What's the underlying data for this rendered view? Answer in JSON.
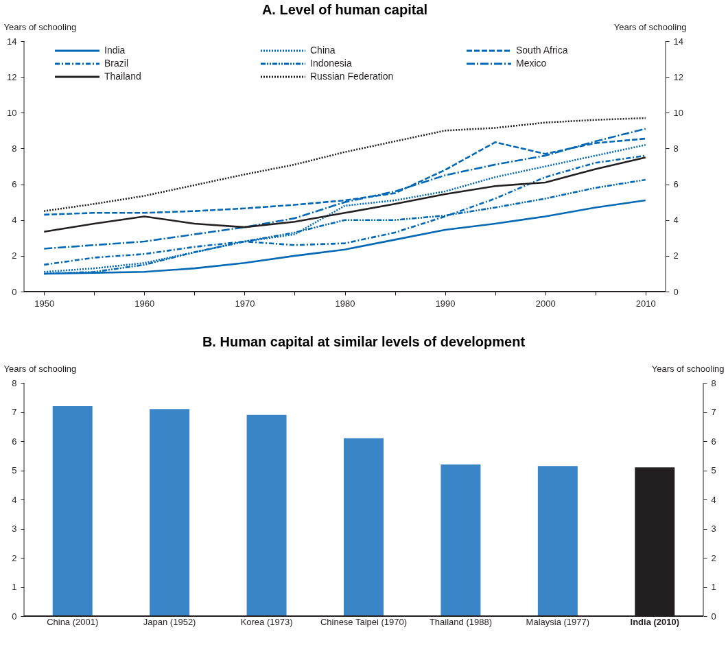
{
  "chart_data": [
    {
      "type": "line",
      "title": "A. Level of human capital",
      "ylabel": "Years of schooling",
      "y2label": "Years of schooling",
      "x": [
        1950,
        1955,
        1960,
        1965,
        1970,
        1975,
        1980,
        1985,
        1990,
        1995,
        2000,
        2005,
        2010
      ],
      "xlim": [
        1948,
        2012
      ],
      "xticks": [
        1950,
        {
          "value": 1955,
          "label": null
        },
        1960,
        {
          "value": 1965,
          "label": null
        },
        1970,
        {
          "value": 1975,
          "label": null
        },
        1980,
        {
          "value": 1985,
          "label": null
        },
        1990,
        {
          "value": 1995,
          "label": null
        },
        2000,
        {
          "value": 2005,
          "label": null
        },
        2010
      ],
      "ylim": [
        0,
        14
      ],
      "yticks": [
        0,
        2,
        4,
        6,
        8,
        10,
        12,
        14
      ],
      "y2lim": [
        0,
        14
      ],
      "y2ticks": [
        0,
        2,
        4,
        6,
        8,
        10,
        12,
        14
      ],
      "grid": false,
      "legend": "top",
      "marker": "none",
      "series": [
        {
          "name": "India",
          "color": "#0068b5",
          "line_style": "solid",
          "values": [
            1.0,
            1.05,
            1.1,
            1.3,
            1.6,
            2.0,
            2.35,
            2.9,
            3.45,
            3.8,
            4.2,
            4.7,
            5.1
          ]
        },
        {
          "name": "China",
          "color": "#0068b5",
          "line_style": "dotted",
          "values": [
            1.1,
            1.3,
            1.6,
            2.2,
            2.8,
            3.2,
            4.8,
            5.1,
            5.6,
            6.4,
            7.0,
            7.6,
            8.2
          ]
        },
        {
          "name": "South Africa",
          "color": "#0068b5",
          "line_style": "dashed",
          "values": [
            4.3,
            4.4,
            4.4,
            4.5,
            4.65,
            4.85,
            5.1,
            5.5,
            6.8,
            8.35,
            7.7,
            8.3,
            8.55
          ]
        },
        {
          "name": "Brazil",
          "color": "#0068b5",
          "line_style": "dashdot",
          "values": [
            1.5,
            1.9,
            2.1,
            2.5,
            2.8,
            2.6,
            2.7,
            3.3,
            4.2,
            5.2,
            6.4,
            7.2,
            7.6
          ]
        },
        {
          "name": "Indonesia",
          "color": "#0068b5",
          "line_style": "dashdotdot",
          "values": [
            1.0,
            1.1,
            1.5,
            2.2,
            2.8,
            3.3,
            4.0,
            4.0,
            4.25,
            4.7,
            5.2,
            5.8,
            6.25
          ]
        },
        {
          "name": "Mexico",
          "color": "#0068b5",
          "line_style": "longdashdot",
          "values": [
            2.4,
            2.6,
            2.8,
            3.2,
            3.6,
            4.1,
            5.0,
            5.6,
            6.5,
            7.1,
            7.6,
            8.4,
            9.1
          ]
        },
        {
          "name": "Thailand",
          "color": "#231f20",
          "line_style": "solid",
          "values": [
            3.35,
            3.8,
            4.2,
            3.8,
            3.6,
            3.9,
            4.4,
            4.9,
            5.45,
            5.9,
            6.1,
            6.85,
            7.5
          ]
        },
        {
          "name": "Russian Federation",
          "color": "#231f20",
          "line_style": "dotted",
          "values": [
            4.5,
            4.9,
            5.35,
            5.95,
            6.55,
            7.1,
            7.8,
            8.4,
            9.0,
            9.15,
            9.45,
            9.6,
            9.7
          ]
        }
      ]
    },
    {
      "type": "bar",
      "title": "B. Human capital at similar levels of development",
      "ylabel": "Years of schooling",
      "y2label": "Years of schooling",
      "categories": [
        "China (2001)",
        "Japan (1952)",
        "Korea (1973)",
        "Chinese Taipei (1970)",
        "Thailand (1988)",
        "Malaysia (1977)",
        "India (2010)"
      ],
      "values": [
        7.2,
        7.1,
        6.9,
        6.1,
        5.2,
        5.15,
        5.1
      ],
      "colors": [
        "#3a84c8",
        "#3a84c8",
        "#3a84c8",
        "#3a84c8",
        "#3a84c8",
        "#3a84c8",
        "#231f20"
      ],
      "ylim": [
        0,
        8
      ],
      "yticks": [
        0,
        1,
        2,
        3,
        4,
        5,
        6,
        7,
        8
      ],
      "y2lim": [
        0,
        8
      ],
      "y2ticks": [
        0,
        1,
        2,
        3,
        4,
        5,
        6,
        7,
        8
      ],
      "grid": false
    }
  ]
}
